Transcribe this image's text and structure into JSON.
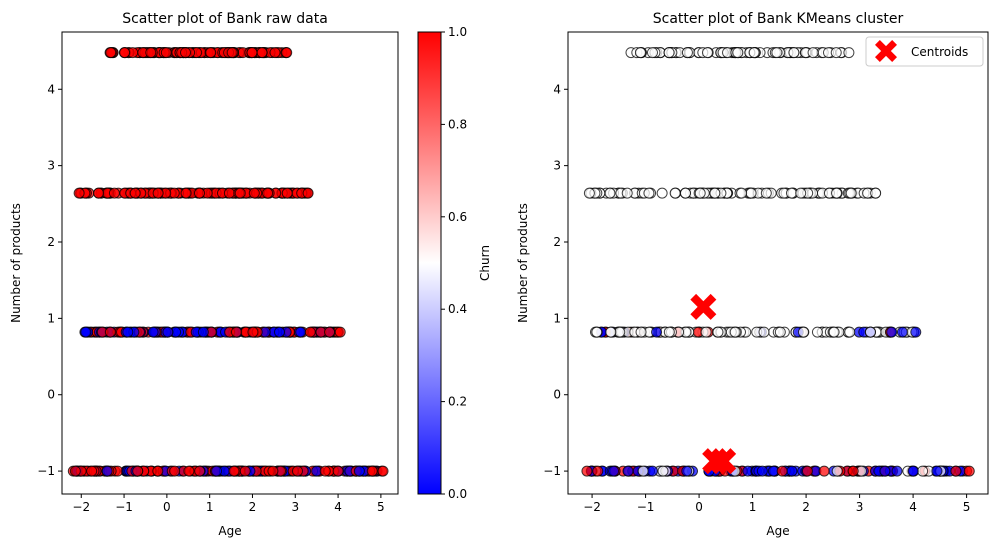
{
  "chart_data": [
    {
      "type": "scatter",
      "title": "Scatter plot of Bank raw data",
      "xlabel": "Age",
      "ylabel": "Number of products",
      "xlim": [
        -2.45,
        5.4
      ],
      "ylim": [
        -1.3,
        4.75
      ],
      "xticks": [
        -2,
        -1,
        0,
        1,
        2,
        3,
        4,
        5
      ],
      "yticks": [
        -1,
        0,
        1,
        2,
        3,
        4
      ],
      "grid": false,
      "colormap": "bwr",
      "colorbar": {
        "label": "Churn",
        "range": [
          0.0,
          1.0
        ],
        "ticks": [
          "0.0",
          "0.2",
          "0.4",
          "0.6",
          "0.8",
          "1.0"
        ]
      },
      "series": [
        {
          "y": 4.48,
          "x_range": [
            -1.35,
            2.8
          ],
          "churn": 1,
          "extra_x": [
            2.8
          ]
        },
        {
          "y": 2.64,
          "x_range": [
            -2.05,
            3.3
          ],
          "churn": 1,
          "extra_x": [
            -2.05,
            3.15,
            3.3
          ]
        },
        {
          "y": 0.82,
          "x_range": [
            -1.95,
            4.05
          ],
          "churn": "mixed",
          "low_x_range": [
            -1.3,
            1.4
          ],
          "extra_x": [
            3.6,
            3.8,
            4.05
          ]
        },
        {
          "y": -1.0,
          "x_range": [
            -2.2,
            5.05
          ],
          "churn": "mixed",
          "extra_x": [
            3.7,
            4.0,
            4.8,
            5.05
          ]
        }
      ]
    },
    {
      "type": "scatter",
      "title": "Scatter plot of Bank KMeans cluster",
      "xlabel": "Age",
      "ylabel": "Number of products",
      "xlim": [
        -2.45,
        5.4
      ],
      "ylim": [
        -1.3,
        4.75
      ],
      "xticks": [
        -2,
        -1,
        0,
        1,
        2,
        3,
        4,
        5
      ],
      "yticks": [
        -1,
        0,
        1,
        2,
        3,
        4
      ],
      "grid": false,
      "legend": {
        "placement": "top-right",
        "entries": [
          "Centroids"
        ]
      },
      "series": [
        {
          "y": 4.48,
          "x_range": [
            -1.35,
            2.8
          ],
          "cluster_color": "#ffffff",
          "extra_x": [
            2.8
          ]
        },
        {
          "y": 2.64,
          "x_range": [
            -2.05,
            3.3
          ],
          "cluster_color": "#ffffff",
          "extra_x": [
            -2.05,
            3.15,
            3.3
          ]
        },
        {
          "y": 0.82,
          "x_range": [
            -1.95,
            4.05
          ],
          "cluster_color": "#ffffff",
          "extra_x": [
            3.6,
            3.8,
            4.05
          ]
        },
        {
          "y": -1.0,
          "x_range": [
            -2.2,
            5.05
          ],
          "cluster_color": "mixed",
          "extra_x": [
            3.7,
            4.0,
            4.8,
            5.05
          ]
        }
      ],
      "centroids": [
        {
          "x": 0.08,
          "y": 1.15
        },
        {
          "x": 0.3,
          "y": -0.87
        },
        {
          "x": 0.45,
          "y": -0.87
        }
      ]
    }
  ],
  "colors": {
    "red": "#ff0000",
    "blue": "#0000ff",
    "white": "#ffffff",
    "marker_edge": "#000000",
    "centroid": "#ff0000"
  }
}
